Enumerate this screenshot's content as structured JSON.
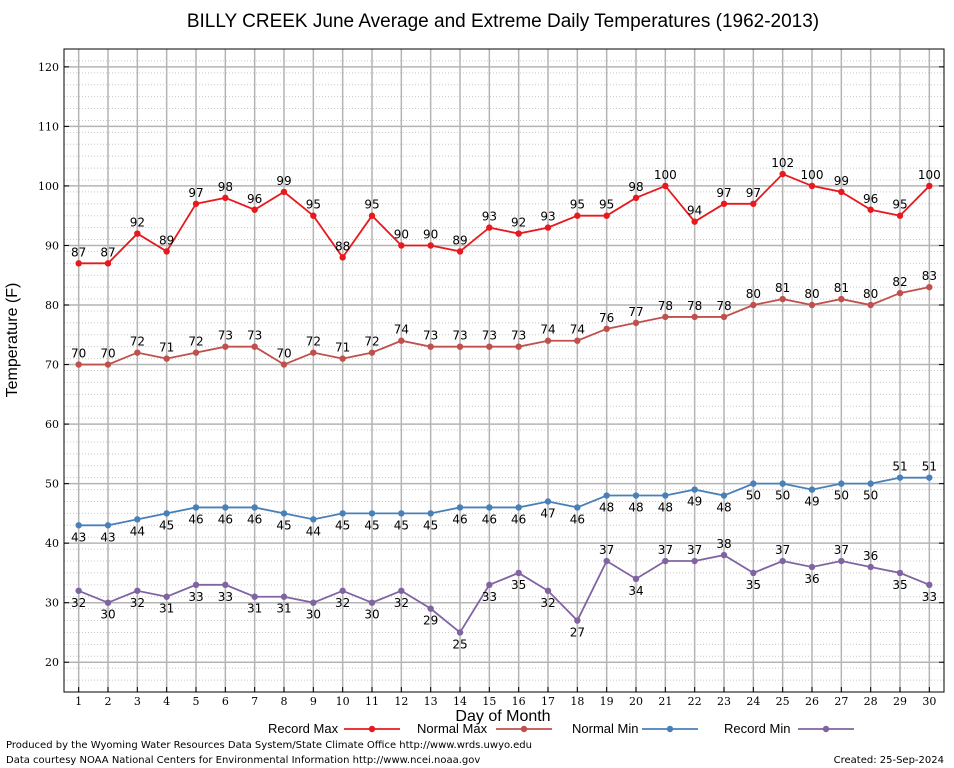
{
  "chart_data": {
    "type": "line",
    "title": "BILLY CREEK June Average and Extreme Daily Temperatures (1962-2013)",
    "xlabel": "Day of Month",
    "ylabel": "Temperature (F)",
    "x": [
      1,
      2,
      3,
      4,
      5,
      6,
      7,
      8,
      9,
      10,
      11,
      12,
      13,
      14,
      15,
      16,
      17,
      18,
      19,
      20,
      21,
      22,
      23,
      24,
      25,
      26,
      27,
      28,
      29,
      30
    ],
    "xlim": [
      0.5,
      30.5
    ],
    "ylim": [
      15,
      123
    ],
    "yticks": [
      20,
      30,
      40,
      50,
      60,
      70,
      80,
      90,
      100,
      110,
      120
    ],
    "grid": true,
    "series": [
      {
        "name": "Record Max",
        "color": "#e8191e",
        "values": [
          87,
          87,
          92,
          89,
          97,
          98,
          96,
          99,
          95,
          88,
          95,
          90,
          90,
          89,
          93,
          92,
          93,
          95,
          95,
          98,
          100,
          94,
          97,
          97,
          102,
          100,
          99,
          96,
          95,
          100
        ]
      },
      {
        "name": "Normal Max",
        "color": "#c0504d",
        "values": [
          70,
          70,
          72,
          71,
          72,
          73,
          73,
          70,
          72,
          71,
          72,
          74,
          73,
          73,
          73,
          73,
          74,
          74,
          76,
          77,
          78,
          78,
          78,
          80,
          81,
          80,
          81,
          80,
          82,
          83
        ]
      },
      {
        "name": "Normal Min",
        "color": "#4a80b8",
        "values": [
          43,
          43,
          44,
          45,
          46,
          46,
          46,
          45,
          44,
          45,
          45,
          45,
          45,
          46,
          46,
          46,
          47,
          46,
          48,
          48,
          48,
          49,
          48,
          50,
          50,
          49,
          50,
          50,
          51,
          51
        ]
      },
      {
        "name": "Record Min",
        "color": "#8064a2",
        "values": [
          32,
          30,
          32,
          31,
          33,
          33,
          31,
          31,
          30,
          32,
          30,
          32,
          29,
          25,
          33,
          35,
          32,
          27,
          37,
          34,
          37,
          37,
          38,
          35,
          37,
          36,
          37,
          36,
          35,
          33
        ]
      }
    ]
  },
  "footer": {
    "line1": "Produced by the Wyoming Water Resources Data System/State Climate Office http://www.wrds.uwyo.edu",
    "line2": "Data courtesy NOAA National Centers for Environmental Information http://www.ncei.noaa.gov",
    "created": "Created:  25-Sep-2024"
  }
}
